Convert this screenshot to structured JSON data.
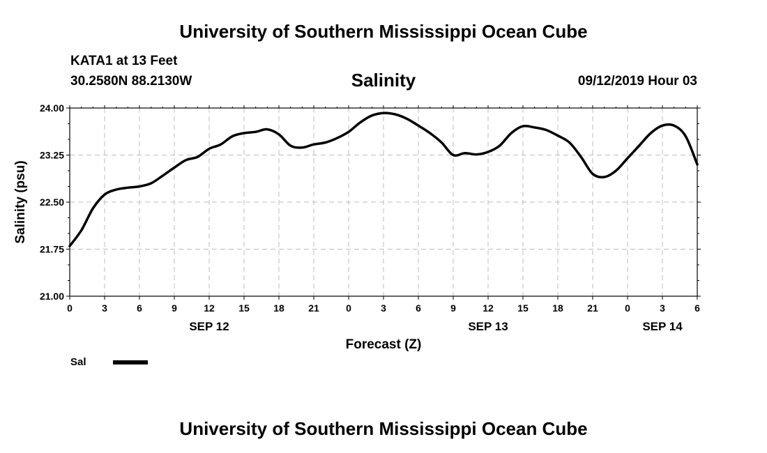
{
  "header": {
    "title": "University of Southern Mississippi Ocean Cube",
    "station": "KATA1 at 13 Feet",
    "coords": "30.2580N 88.2130W",
    "parameter": "Salinity",
    "issued": "09/12/2019 Hour 03"
  },
  "footer": {
    "title": "University of Southern Mississippi Ocean Cube"
  },
  "chart_data": {
    "type": "line",
    "title": "Salinity",
    "xlabel": "Forecast (Z)",
    "ylabel": "Salinity (psu)",
    "ylim": [
      21.0,
      24.0
    ],
    "xlim": [
      0,
      54
    ],
    "y_ticks": [
      "21.00",
      "21.75",
      "22.50",
      "23.25",
      "24.00"
    ],
    "x_tick_hours": [
      0,
      3,
      6,
      9,
      12,
      15,
      18,
      21,
      24,
      27,
      30,
      33,
      36,
      39,
      42,
      45,
      48,
      51,
      54
    ],
    "x_tick_labels": [
      "0",
      "3",
      "6",
      "9",
      "12",
      "15",
      "18",
      "21",
      "0",
      "3",
      "6",
      "9",
      "12",
      "15",
      "18",
      "21",
      "0",
      "3",
      "6"
    ],
    "day_labels": [
      {
        "label": "SEP 12",
        "hour": 12
      },
      {
        "label": "SEP 13",
        "hour": 36
      },
      {
        "label": "SEP 14",
        "hour": 51
      }
    ],
    "grid": true,
    "legend_position": "bottom-left",
    "series": [
      {
        "name": "Sal",
        "color": "#000000",
        "x": [
          0,
          1,
          2,
          3,
          4,
          5,
          6,
          7,
          8,
          9,
          10,
          11,
          12,
          13,
          14,
          15,
          16,
          17,
          18,
          19,
          20,
          21,
          22,
          23,
          24,
          25,
          26,
          27,
          28,
          29,
          30,
          31,
          32,
          33,
          34,
          35,
          36,
          37,
          38,
          39,
          40,
          41,
          42,
          43,
          44,
          45,
          46,
          47,
          48,
          49,
          50,
          51,
          52,
          53,
          54
        ],
        "y": [
          21.8,
          22.05,
          22.4,
          22.62,
          22.7,
          22.73,
          22.75,
          22.8,
          22.92,
          23.05,
          23.17,
          23.22,
          23.35,
          23.42,
          23.55,
          23.6,
          23.62,
          23.66,
          23.58,
          23.4,
          23.37,
          23.42,
          23.45,
          23.52,
          23.62,
          23.77,
          23.88,
          23.92,
          23.9,
          23.83,
          23.72,
          23.6,
          23.45,
          23.25,
          23.28,
          23.26,
          23.3,
          23.4,
          23.6,
          23.71,
          23.69,
          23.65,
          23.56,
          23.45,
          23.22,
          22.95,
          22.9,
          23.0,
          23.2,
          23.4,
          23.6,
          23.72,
          23.72,
          23.55,
          23.1
        ]
      }
    ]
  }
}
